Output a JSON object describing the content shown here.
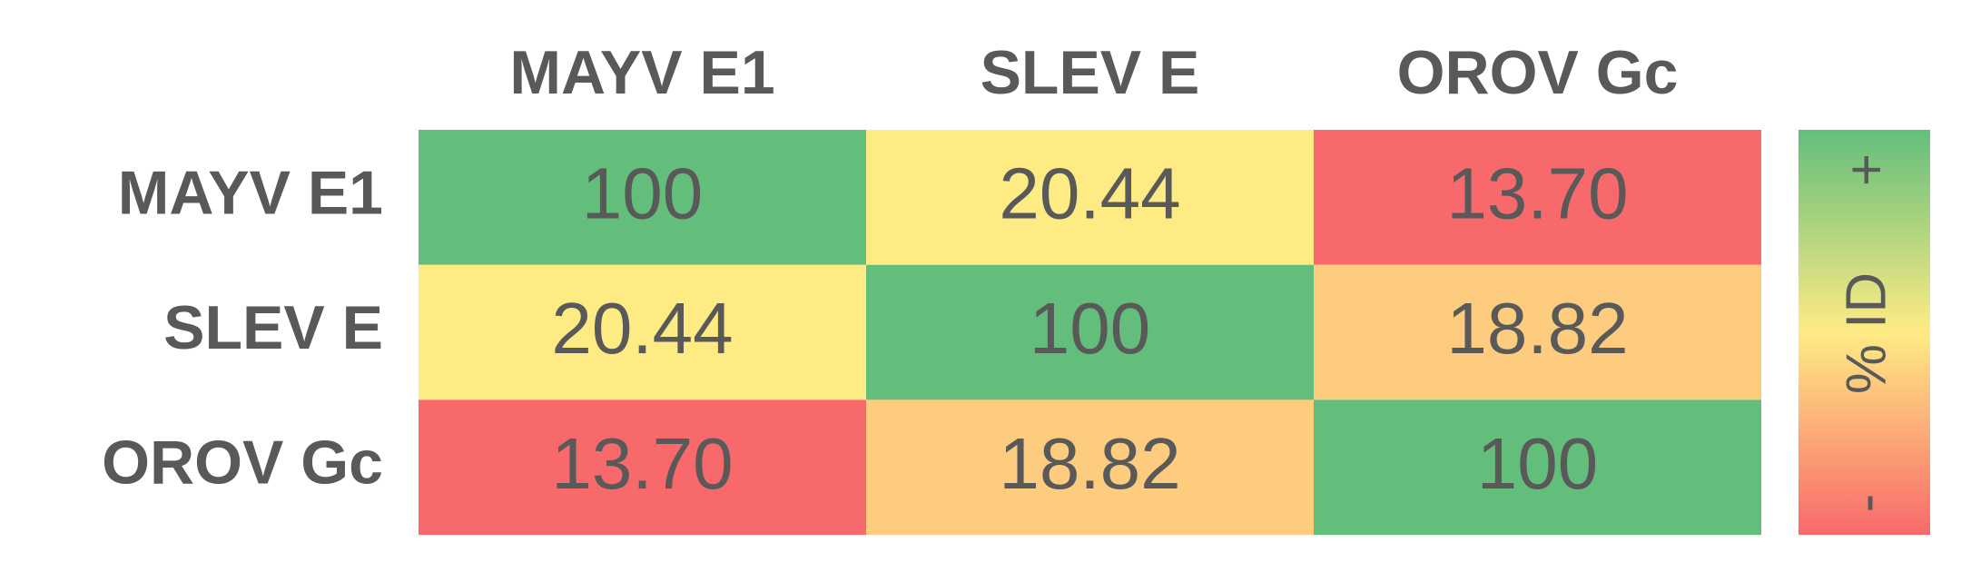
{
  "chart_data": {
    "type": "heatmap",
    "x_categories": [
      "MAYV E1",
      "SLEV E",
      "OROV Gc"
    ],
    "y_categories": [
      "MAYV E1",
      "SLEV E",
      "OROV Gc"
    ],
    "values": [
      [
        100,
        20.44,
        13.7
      ],
      [
        20.44,
        100,
        18.82
      ],
      [
        13.7,
        18.82,
        100
      ]
    ],
    "value_labels": [
      [
        "100",
        "20.44",
        "13.70"
      ],
      [
        "20.44",
        "100",
        "18.82"
      ],
      [
        "13.70",
        "18.82",
        "100"
      ]
    ],
    "colormap": [
      "#f8696b",
      "#ffeb84",
      "#63be7b"
    ],
    "colorbar": {
      "label": "% ID",
      "high_label": "+",
      "low_label": "-"
    }
  }
}
